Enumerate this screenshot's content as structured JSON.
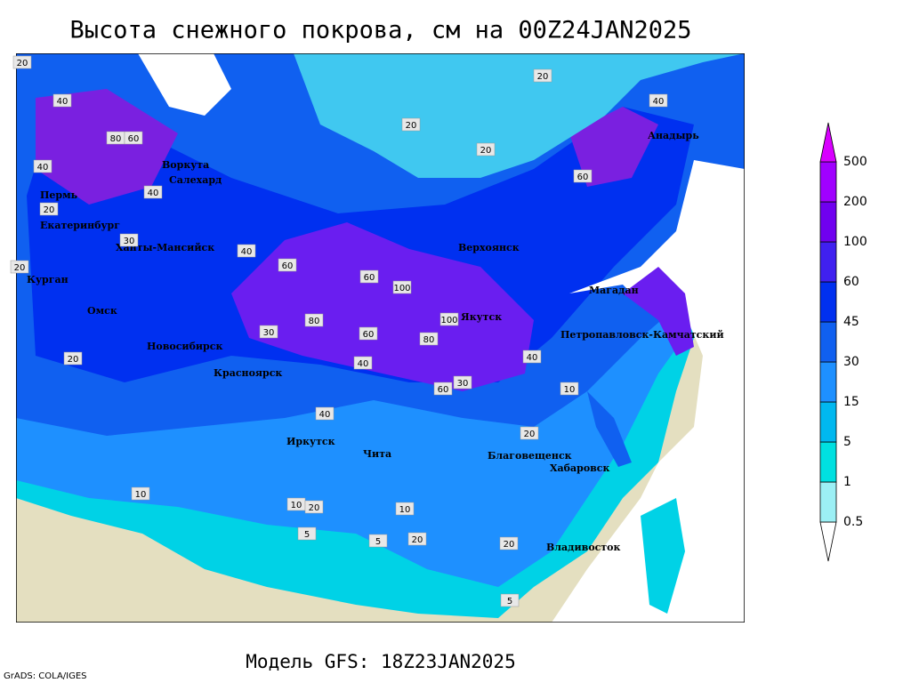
{
  "title": "Высота снежного покрова, см на 00Z24JAN2025",
  "model": "Модель GFS: 18Z23JAN2025",
  "credit": "GrADS: COLA/IGES",
  "cities": [
    "Воркута",
    "Салехард",
    "Пермь",
    "Екатеринбург",
    "Ханты-Мансийск",
    "Курган",
    "Омск",
    "Новосибирск",
    "Красноярск",
    "Иркутск",
    "Чита",
    "Верхоянск",
    "Якутск",
    "Магадан",
    "Петропавловск-Камчатский",
    "Анадырь",
    "Благовещенск",
    "Хабаровск",
    "Владивосток"
  ],
  "contour_labels": [
    20,
    40,
    80,
    60,
    40,
    40,
    20,
    30,
    20,
    20,
    60,
    100,
    60,
    80,
    80,
    100,
    60,
    40,
    40,
    60,
    30,
    20,
    20,
    10,
    10,
    20,
    5,
    5,
    10,
    20,
    40,
    60,
    40,
    10,
    20,
    30,
    5,
    20,
    40,
    20
  ],
  "colorbar": {
    "levels": [
      0.5,
      1,
      5,
      15,
      30,
      45,
      60,
      100,
      200,
      500
    ],
    "colors": [
      "#ffffff",
      "#9cf0f5",
      "#00e0e0",
      "#00b8f0",
      "#1e90ff",
      "#1060f0",
      "#0030f0",
      "#4020f0",
      "#7000f0",
      "#a000ff",
      "#d800ff"
    ]
  }
}
